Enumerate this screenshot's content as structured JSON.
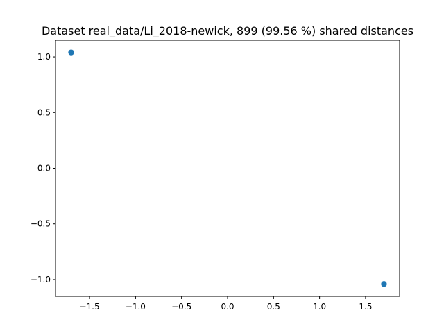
{
  "chart_data": {
    "type": "scatter",
    "title": "Dataset real_data/Li_2018-newick, 899 (99.56 %) shared distances",
    "xlabel": "",
    "ylabel": "",
    "xlim": [
      -1.87,
      1.87
    ],
    "ylim": [
      -1.15,
      1.15
    ],
    "grid": false,
    "legend": "none",
    "series": [
      {
        "color": "#1f77b4",
        "points": [
          {
            "x": -1.7,
            "y": 1.04
          },
          {
            "x": 1.7,
            "y": -1.04
          }
        ]
      }
    ],
    "xticks": [
      {
        "value": -1.5,
        "label": "−1.5"
      },
      {
        "value": -1.0,
        "label": "−1.0"
      },
      {
        "value": -0.5,
        "label": "−0.5"
      },
      {
        "value": 0.0,
        "label": "0.0"
      },
      {
        "value": 0.5,
        "label": "0.5"
      },
      {
        "value": 1.0,
        "label": "1.0"
      },
      {
        "value": 1.5,
        "label": "1.5"
      }
    ],
    "yticks": [
      {
        "value": 1.0,
        "label": "1.0"
      },
      {
        "value": 0.5,
        "label": "0.5"
      },
      {
        "value": 0.0,
        "label": "0.0"
      },
      {
        "value": -0.5,
        "label": "−0.5"
      },
      {
        "value": -1.0,
        "label": "−1.0"
      }
    ]
  }
}
